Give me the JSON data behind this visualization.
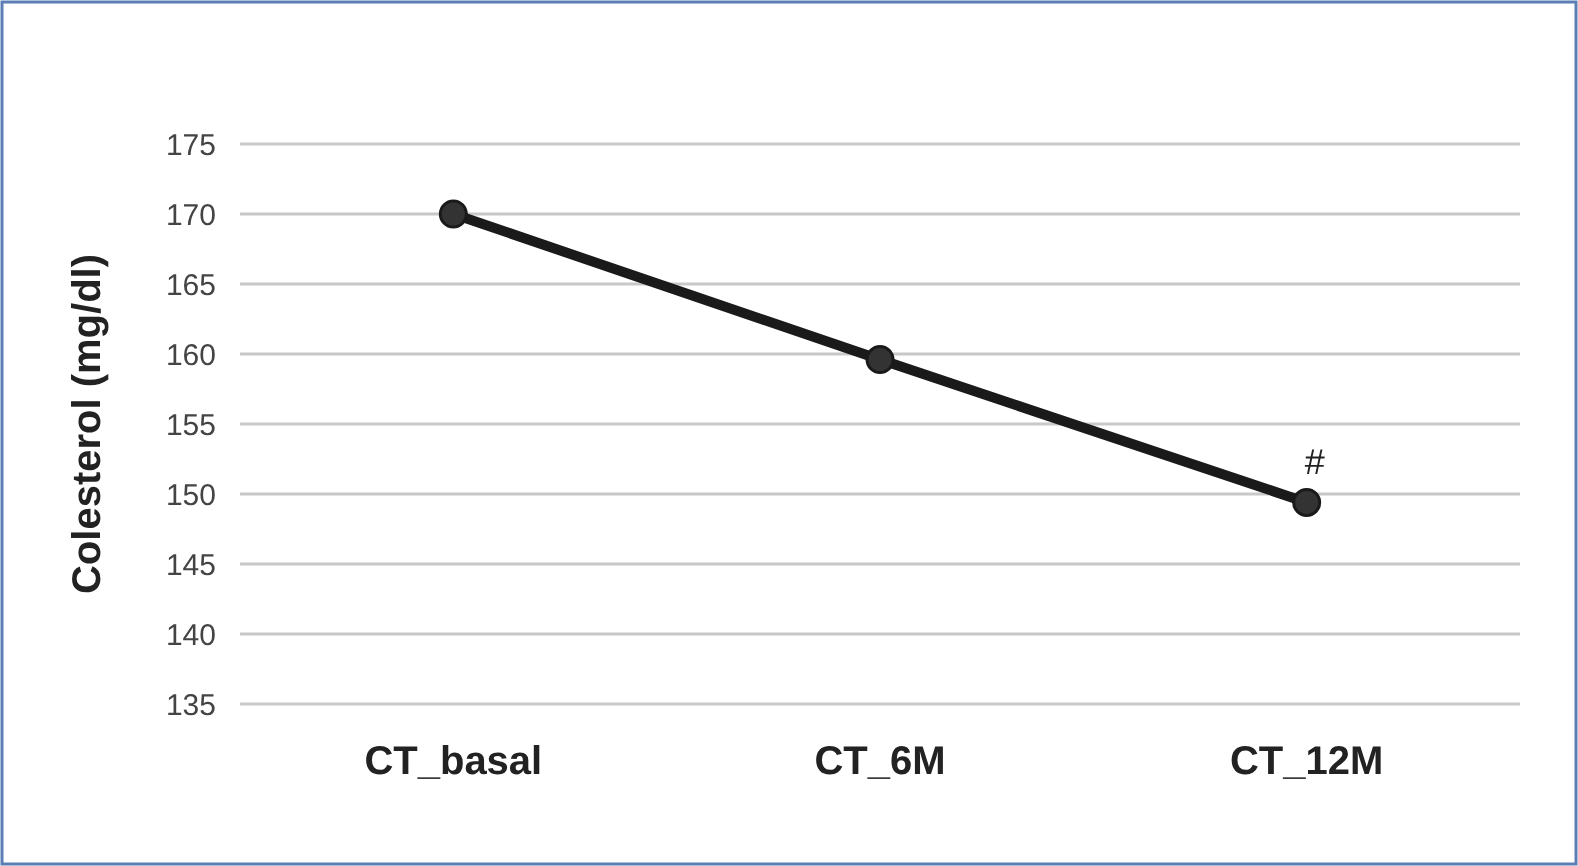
{
  "chart_data": {
    "type": "line",
    "ylabel": "Colesterol (mg/dl)",
    "categories": [
      "CT_basal",
      "CT_6M",
      "CT_12M"
    ],
    "series": [
      {
        "color": "#1a1a1a",
        "values": [
          170,
          159.6,
          149.4
        ]
      }
    ],
    "ylim": [
      135,
      175
    ],
    "yticks": [
      135,
      140,
      145,
      150,
      155,
      160,
      165,
      170,
      175
    ],
    "grid": "y",
    "marker": "circle",
    "line_style": "solid",
    "annotations": [
      {
        "text": "#",
        "x": "CT_12M",
        "y": 149.4
      }
    ]
  }
}
